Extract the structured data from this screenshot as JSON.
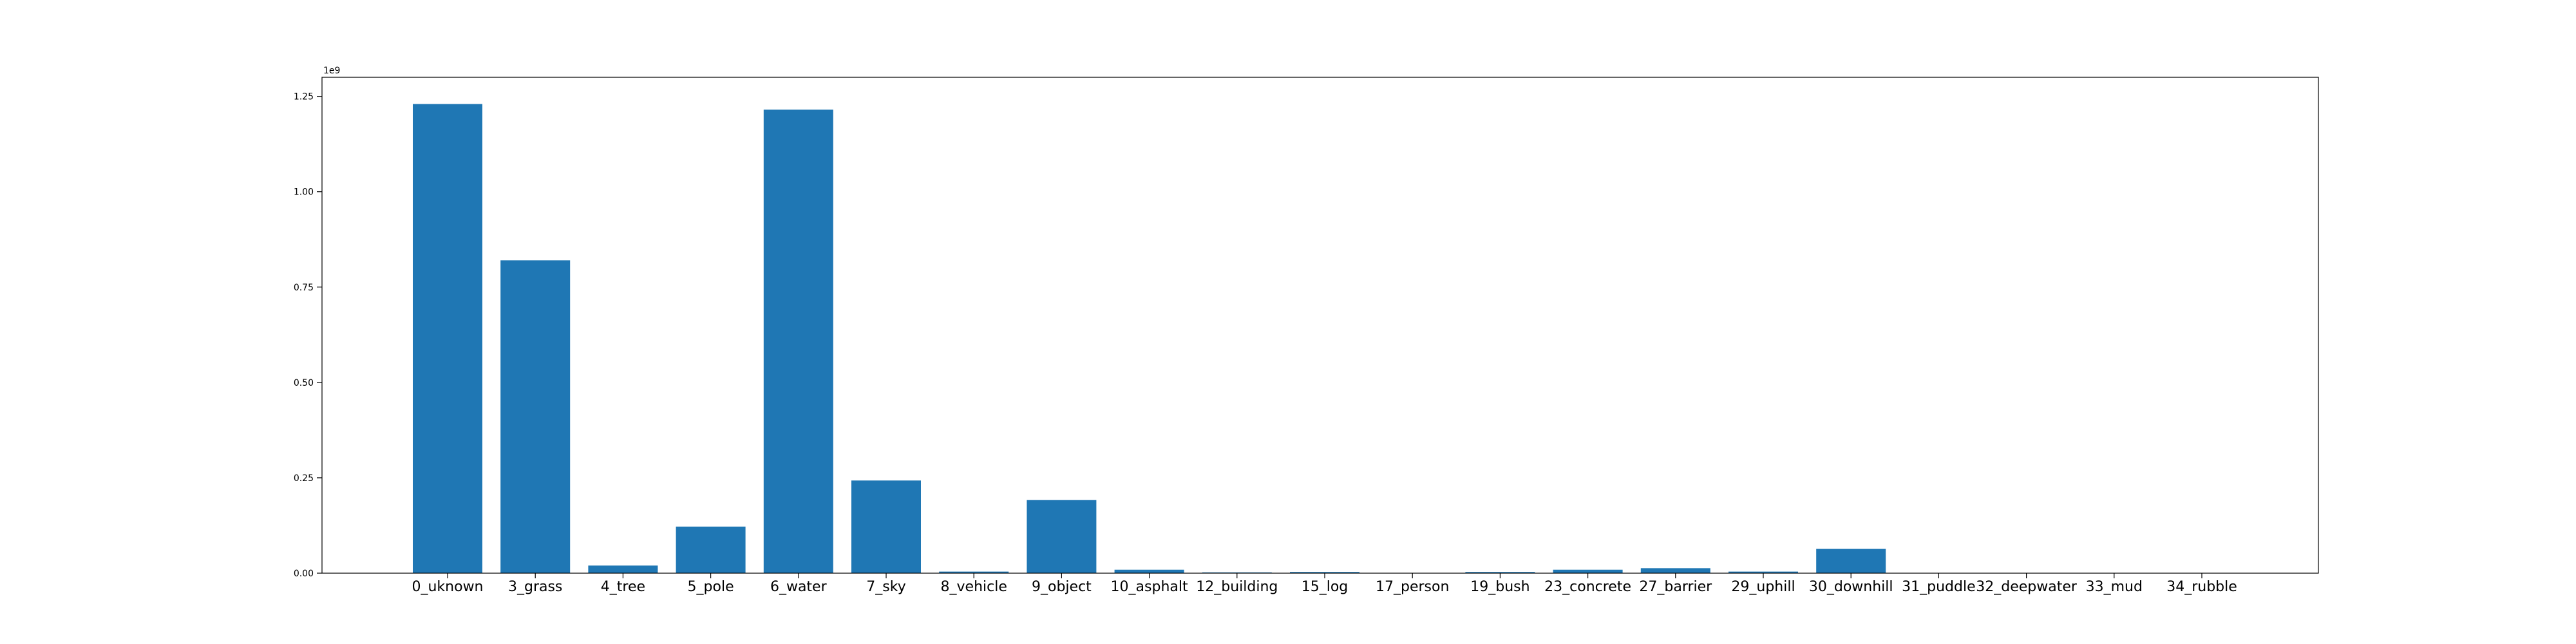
{
  "chart_data": {
    "type": "bar",
    "title": "",
    "xlabel": "",
    "ylabel": "",
    "offset_text": "1e9",
    "bar_color": "#1f77b4",
    "grid": false,
    "legend": "none",
    "ylim": [
      0,
      1.3
    ],
    "yticks": [
      0.0,
      0.25,
      0.5,
      0.75,
      1.0,
      1.25
    ],
    "ytick_labels": [
      "0.00",
      "0.25",
      "0.50",
      "0.75",
      "1.00",
      "1.25"
    ],
    "categories": [
      "0_uknown",
      "3_grass",
      "4_tree",
      "5_pole",
      "6_water",
      "7_sky",
      "8_vehicle",
      "9_object",
      "10_asphalt",
      "12_building",
      "15_log",
      "17_person",
      "19_bush",
      "23_concrete",
      "27_barrier",
      "29_uphill",
      "30_downhill",
      "31_puddle",
      "32_deepwater",
      "33_mud",
      "34_rubble"
    ],
    "values": [
      1.23,
      0.82,
      0.02,
      0.122,
      1.215,
      0.243,
      0.004,
      0.192,
      0.009,
      0.002,
      0.003,
      0.0005,
      0.003,
      0.009,
      0.013,
      0.004,
      0.064,
      0.0003,
      0.0002,
      0.0003,
      0.0002
    ]
  }
}
